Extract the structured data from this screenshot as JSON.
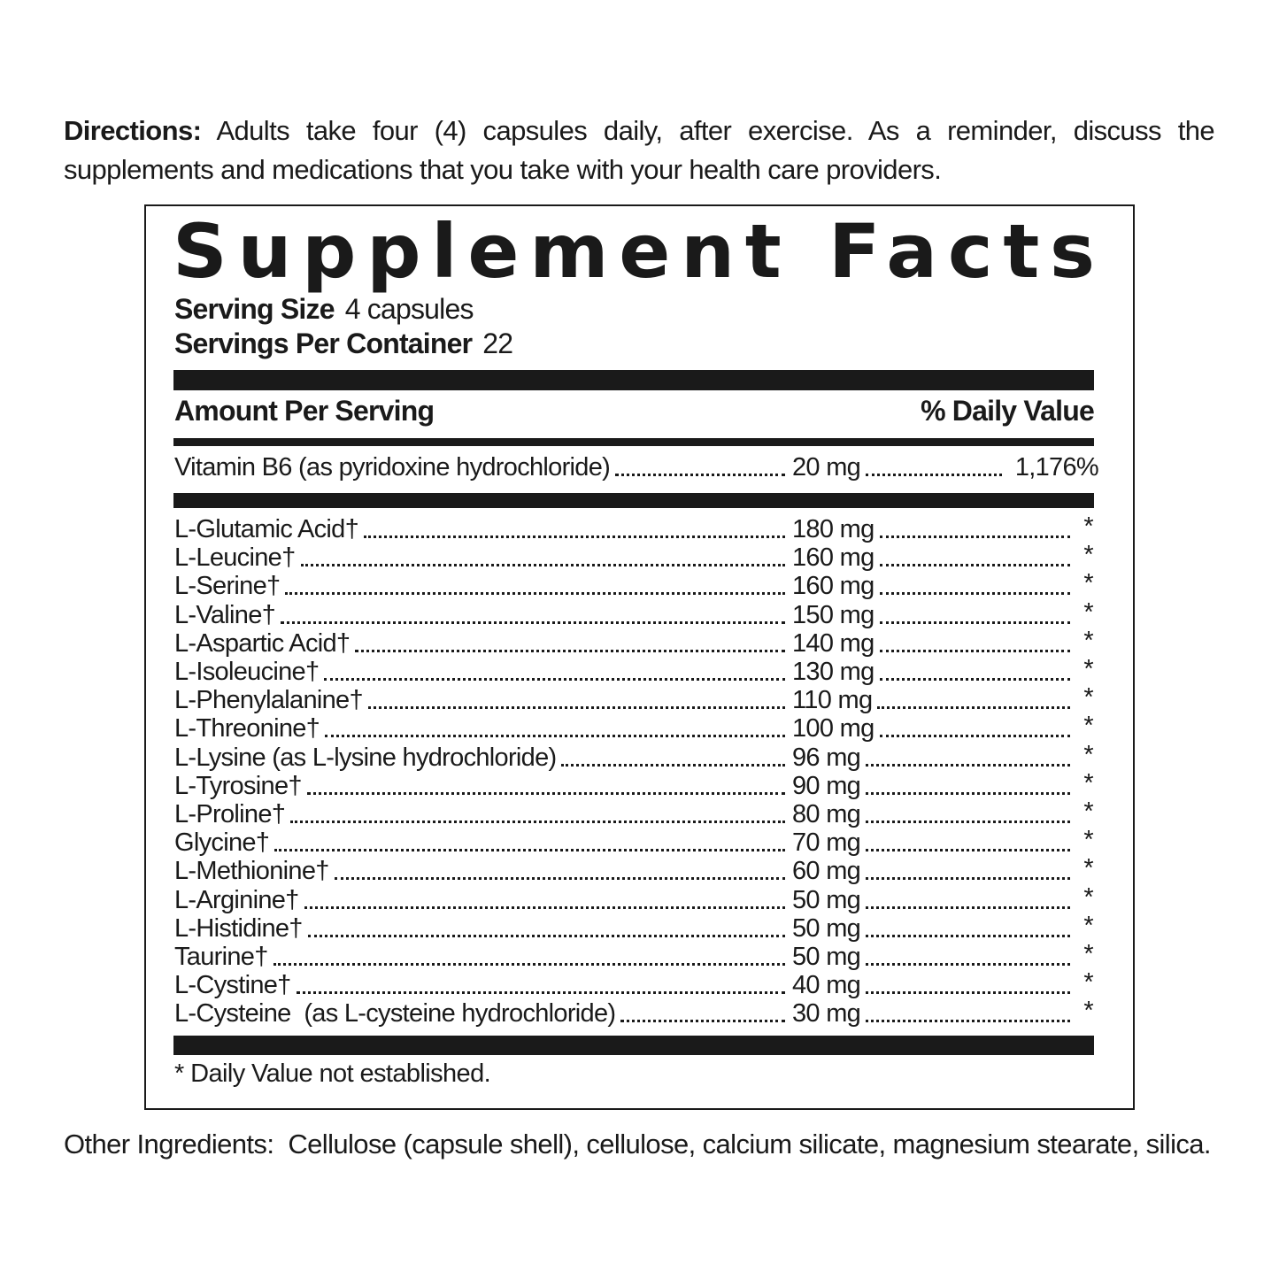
{
  "directions": {
    "label": "Directions:",
    "text": "Adults take four (4) capsules daily, after exercise. As a reminder, discuss the supplements and medications that you take with your health care providers."
  },
  "facts": {
    "title": "Supplement Facts",
    "serving_size_label": "Serving Size",
    "serving_size": "4 capsules",
    "servings_label": "Servings Per Container",
    "servings": "22",
    "amount_header": "Amount Per Serving",
    "dv_header": "% Daily Value",
    "vitamin": {
      "name": "Vitamin B6 (as pyridoxine hydrochloride)",
      "amount": "20 mg",
      "dv": "1,176%"
    },
    "ingredients": [
      {
        "name": "L-Glutamic Acid†",
        "amount": "180 mg",
        "dv": "*"
      },
      {
        "name": "L-Leucine†",
        "amount": "160 mg",
        "dv": "*"
      },
      {
        "name": "L-Serine†",
        "amount": "160 mg",
        "dv": "*"
      },
      {
        "name": "L-Valine†",
        "amount": "150 mg",
        "dv": "*"
      },
      {
        "name": "L-Aspartic Acid†",
        "amount": "140 mg",
        "dv": "*"
      },
      {
        "name": "L-Isoleucine†",
        "amount": "130 mg",
        "dv": "*"
      },
      {
        "name": "L-Phenylalanine†",
        "amount": "110 mg",
        "dv": "*"
      },
      {
        "name": "L-Threonine†",
        "amount": "100 mg",
        "dv": "*"
      },
      {
        "name": "L-Lysine (as L-lysine hydrochloride)",
        "amount": "96 mg",
        "dv": "*"
      },
      {
        "name": "L-Tyrosine†",
        "amount": "90 mg",
        "dv": "*"
      },
      {
        "name": "L-Proline†",
        "amount": "80 mg",
        "dv": "*"
      },
      {
        "name": "Glycine†",
        "amount": "70 mg",
        "dv": "*"
      },
      {
        "name": "L-Methionine†",
        "amount": "60 mg",
        "dv": "*"
      },
      {
        "name": "L-Arginine†",
        "amount": "50 mg",
        "dv": "*"
      },
      {
        "name": "L-Histidine†",
        "amount": "50 mg",
        "dv": "*"
      },
      {
        "name": "Taurine†",
        "amount": "50 mg",
        "dv": "*"
      },
      {
        "name": "L-Cystine†",
        "amount": "40 mg",
        "dv": "*"
      },
      {
        "name": "L-Cysteine  (as L-cysteine hydrochloride)",
        "amount": "30 mg",
        "dv": "*"
      }
    ],
    "footnote": "* Daily Value not established."
  },
  "other": {
    "label": "Other Ingredients:",
    "text": "Cellulose (capsule shell), cellulose, calcium silicate, magnesium stearate, silica."
  }
}
